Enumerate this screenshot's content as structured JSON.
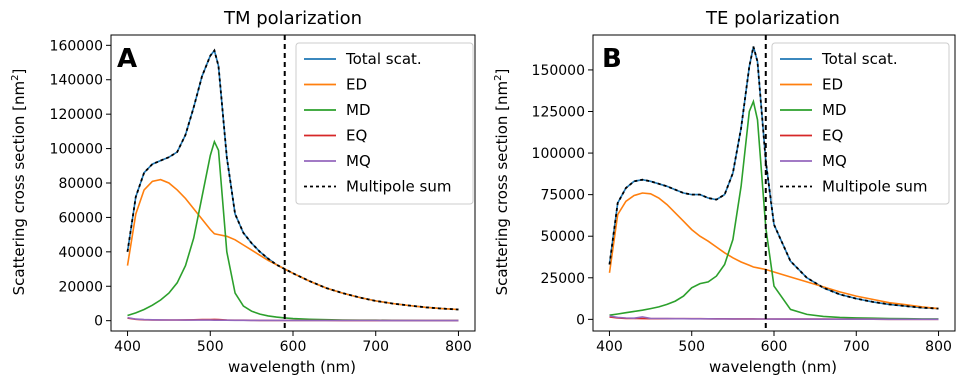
{
  "colors": {
    "total": "#1f77b4",
    "ed": "#ff7f0e",
    "md": "#2ca02c",
    "eq": "#d62728",
    "mq": "#9467bd",
    "sum": "#000000",
    "vline": "#000000"
  },
  "chart_data": [
    {
      "type": "line",
      "panel_label": "A",
      "title": "TM polarization",
      "xlabel": "wavelength (nm)",
      "ylabel": "Scattering cross section [nm²]",
      "ylabel_main": "Scattering cross section [nm",
      "ylabel_sup": "2",
      "ylabel_end": "]",
      "xlim": [
        380,
        820
      ],
      "ylim": [
        -6000,
        166000
      ],
      "xticks": [
        400,
        500,
        600,
        700,
        800
      ],
      "yticks": [
        0,
        20000,
        40000,
        60000,
        80000,
        100000,
        120000,
        140000,
        160000
      ],
      "vline_x": 590,
      "legend_position": "top-right",
      "grid": false,
      "x": [
        400,
        410,
        420,
        430,
        440,
        450,
        460,
        470,
        480,
        490,
        500,
        505,
        510,
        520,
        530,
        540,
        550,
        560,
        570,
        580,
        590,
        600,
        620,
        640,
        660,
        680,
        700,
        720,
        740,
        760,
        780,
        800
      ],
      "series": [
        {
          "name": "Total scat.",
          "key": "total",
          "values": [
            40000,
            72000,
            86000,
            91000,
            93000,
            95000,
            98000,
            108000,
            124000,
            142000,
            154000,
            157000,
            148000,
            95000,
            62000,
            51000,
            45000,
            40000,
            36000,
            32500,
            30000,
            27500,
            23000,
            19000,
            16000,
            13500,
            11500,
            10000,
            8800,
            7800,
            7000,
            6500
          ]
        },
        {
          "name": "ED",
          "key": "ed",
          "values": [
            32000,
            62000,
            76000,
            81000,
            82000,
            80000,
            76000,
            71000,
            65000,
            59000,
            53000,
            50500,
            50000,
            49000,
            47000,
            44000,
            41000,
            38000,
            35000,
            32500,
            30000,
            27500,
            23000,
            19000,
            16000,
            13500,
            11500,
            10000,
            8800,
            7800,
            7000,
            6500
          ]
        },
        {
          "name": "MD",
          "key": "md",
          "values": [
            3000,
            4500,
            6500,
            9000,
            12000,
            16000,
            22000,
            32000,
            48000,
            72000,
            96000,
            104000,
            99000,
            40000,
            16000,
            8500,
            5500,
            3800,
            2800,
            2100,
            1600,
            1200,
            800,
            550,
            400,
            300,
            250,
            200,
            150,
            120,
            100,
            80
          ]
        },
        {
          "name": "EQ",
          "key": "eq",
          "values": [
            1500,
            800,
            500,
            400,
            400,
            400,
            400,
            450,
            500,
            600,
            700,
            750,
            700,
            400,
            300,
            250,
            200,
            180,
            150,
            130,
            120,
            100,
            90,
            80,
            70,
            60,
            50,
            40,
            30,
            25,
            20,
            20
          ]
        },
        {
          "name": "MQ",
          "key": "mq",
          "values": [
            1800,
            900,
            600,
            500,
            450,
            400,
            380,
            360,
            340,
            330,
            320,
            300,
            280,
            250,
            220,
            200,
            180,
            170,
            160,
            150,
            140,
            130,
            120,
            110,
            100,
            90,
            80,
            70,
            60,
            50,
            40,
            30
          ]
        },
        {
          "name": "Multipole sum",
          "key": "sum",
          "dashed": true,
          "values": [
            40000,
            72000,
            86000,
            91000,
            93000,
            95000,
            98000,
            108000,
            124000,
            142000,
            154000,
            157000,
            148000,
            95000,
            62000,
            51000,
            45000,
            40000,
            36000,
            32500,
            30000,
            27500,
            23000,
            19000,
            16000,
            13500,
            11500,
            10000,
            8800,
            7800,
            7000,
            6500
          ]
        }
      ]
    },
    {
      "type": "line",
      "panel_label": "B",
      "title": "TE polarization",
      "xlabel": "wavelength (nm)",
      "ylabel": "Scattering cross section [nm²]",
      "ylabel_main": "Scattering cross section [nm",
      "ylabel_sup": "2",
      "ylabel_end": "]",
      "xlim": [
        380,
        820
      ],
      "ylim": [
        -7000,
        171000
      ],
      "xticks": [
        400,
        500,
        600,
        700,
        800
      ],
      "yticks": [
        0,
        25000,
        50000,
        75000,
        100000,
        125000,
        150000
      ],
      "vline_x": 590,
      "legend_position": "top-right",
      "grid": false,
      "x": [
        400,
        410,
        420,
        430,
        440,
        450,
        460,
        470,
        480,
        490,
        500,
        510,
        520,
        530,
        540,
        550,
        560,
        570,
        575,
        580,
        590,
        600,
        620,
        640,
        660,
        680,
        700,
        720,
        740,
        760,
        780,
        800
      ],
      "series": [
        {
          "name": "Total scat.",
          "key": "total",
          "values": [
            33000,
            70000,
            79000,
            83000,
            84000,
            83000,
            81500,
            80000,
            78000,
            76000,
            75000,
            75000,
            73000,
            72000,
            75000,
            88000,
            115000,
            152000,
            164000,
            155000,
            95000,
            57000,
            35000,
            25000,
            19000,
            15000,
            12500,
            10500,
            9000,
            8000,
            7000,
            6500
          ]
        },
        {
          "name": "ED",
          "key": "ed",
          "values": [
            28000,
            63000,
            71000,
            74500,
            76000,
            75500,
            73000,
            69000,
            64000,
            59000,
            54000,
            50000,
            47000,
            43500,
            40000,
            37000,
            34500,
            32500,
            31500,
            31000,
            30000,
            28500,
            25500,
            22500,
            19500,
            16500,
            14000,
            12000,
            10000,
            8800,
            7500,
            6500
          ]
        },
        {
          "name": "MD",
          "key": "md",
          "values": [
            2500,
            3200,
            4000,
            4800,
            5500,
            6500,
            7500,
            9000,
            11000,
            14000,
            19000,
            21500,
            22500,
            26000,
            33000,
            48000,
            80000,
            125000,
            131000,
            120000,
            55000,
            20000,
            6000,
            3000,
            1800,
            1200,
            900,
            700,
            500,
            400,
            300,
            250
          ]
        },
        {
          "name": "EQ",
          "key": "eq",
          "values": [
            1500,
            900,
            600,
            500,
            450,
            400,
            400,
            400,
            400,
            400,
            400,
            380,
            360,
            340,
            320,
            300,
            280,
            260,
            250,
            240,
            220,
            200,
            180,
            160,
            140,
            120,
            100,
            80,
            60,
            50,
            40,
            30
          ]
        },
        {
          "name": "MQ",
          "key": "mq",
          "values": [
            2000,
            1200,
            800,
            700,
            1500,
            600,
            500,
            450,
            400,
            380,
            360,
            340,
            320,
            300,
            280,
            260,
            240,
            220,
            210,
            200,
            190,
            180,
            160,
            140,
            120,
            100,
            80,
            70,
            60,
            50,
            40,
            30
          ]
        },
        {
          "name": "Multipole sum",
          "key": "sum",
          "dashed": true,
          "values": [
            33000,
            70000,
            79000,
            83000,
            84000,
            83000,
            81500,
            80000,
            78000,
            76000,
            75000,
            75000,
            73000,
            72000,
            75000,
            88000,
            115000,
            152000,
            164000,
            155000,
            95000,
            57000,
            35000,
            25000,
            19000,
            15000,
            12500,
            10500,
            9000,
            8000,
            7000,
            6500
          ]
        }
      ]
    }
  ]
}
